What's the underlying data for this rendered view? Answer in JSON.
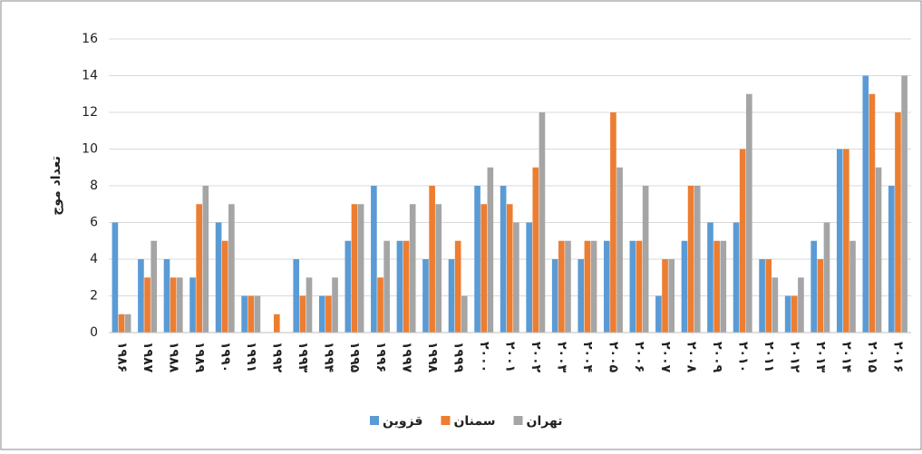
{
  "chart_data": {
    "type": "bar",
    "y_label": "تعداد موج",
    "categories": [
      "۱۹۸۶",
      "۱۹۸۷",
      "۱۹۸۸",
      "۱۹۸۹",
      "۱۹۹۰",
      "۱۹۹۱",
      "۱۹۹۲",
      "۱۹۹۳",
      "۱۹۹۴",
      "۱۹۹۵",
      "۱۹۹۶",
      "۱۹۹۷",
      "۱۹۹۸",
      "۱۹۹۹",
      "۲۰۰۰",
      "۲۰۰۱",
      "۲۰۰۲",
      "۲۰۰۳",
      "۲۰۰۴",
      "۲۰۰۵",
      "۲۰۰۶",
      "۲۰۰۷",
      "۲۰۰۸",
      "۲۰۰۹",
      "۲۰۱۰",
      "۲۰۱۱",
      "۲۰۱۲",
      "۲۰۱۳",
      "۲۰۱۴",
      "۲۰۱۵",
      "۲۰۱۶"
    ],
    "series": [
      {
        "name": "قزوین",
        "color": "#5b9bd5",
        "values": [
          6,
          4,
          4,
          3,
          6,
          2,
          0,
          4,
          2,
          5,
          8,
          5,
          4,
          4,
          8,
          8,
          6,
          4,
          4,
          5,
          5,
          2,
          5,
          6,
          6,
          4,
          2,
          5,
          10,
          14,
          8
        ]
      },
      {
        "name": "سمنان",
        "color": "#ed7d31",
        "values": [
          1,
          3,
          3,
          7,
          5,
          2,
          1,
          2,
          2,
          7,
          3,
          5,
          8,
          5,
          7,
          7,
          9,
          5,
          5,
          12,
          5,
          4,
          8,
          5,
          10,
          4,
          2,
          4,
          10,
          13,
          12
        ]
      },
      {
        "name": "تهران",
        "color": "#a5a5a5",
        "values": [
          1,
          5,
          3,
          8,
          7,
          2,
          0,
          3,
          3,
          7,
          5,
          7,
          7,
          2,
          9,
          6,
          12,
          5,
          5,
          9,
          8,
          4,
          8,
          5,
          13,
          3,
          3,
          6,
          5,
          9,
          14
        ]
      }
    ],
    "ylim": [
      0,
      16
    ],
    "yticks": [
      0,
      2,
      4,
      6,
      8,
      10,
      12,
      14,
      16
    ],
    "grid": true
  }
}
